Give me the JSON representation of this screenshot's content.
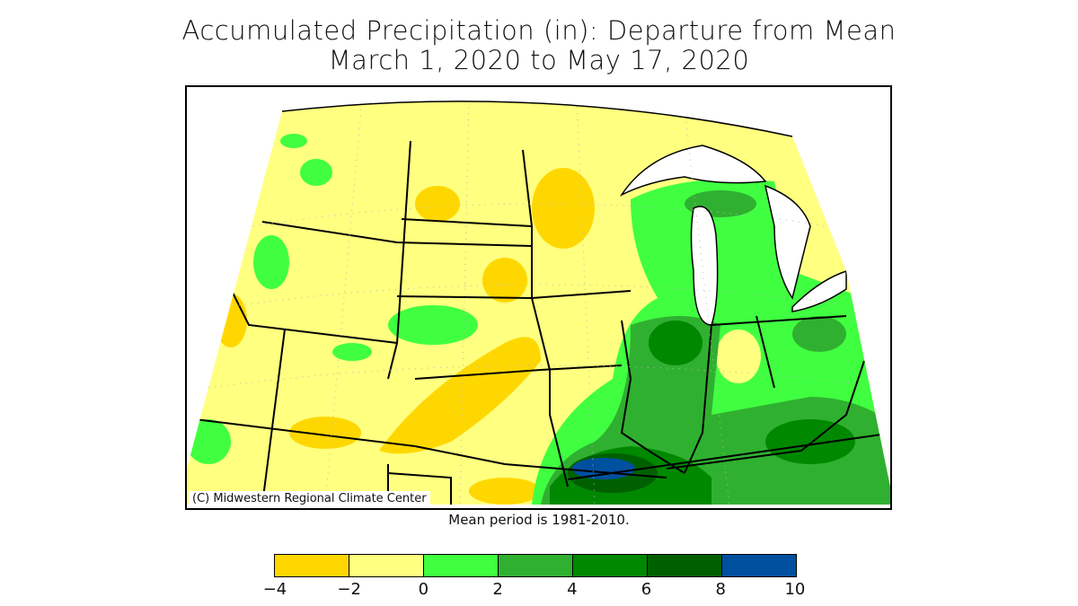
{
  "title": "Accumulated Precipitation (in): Departure from Mean",
  "subtitle": "March 1, 2020 to May 17, 2020",
  "credit": "(C) Midwestern Regional Climate Center",
  "note": "Mean period is 1981-2010.",
  "legend": {
    "unit": "in",
    "ticks": [
      "-4",
      "-2",
      "0",
      "2",
      "4",
      "6",
      "8",
      "10"
    ],
    "bins": [
      {
        "range": [
          -4,
          -2
        ],
        "color": "#FFD700"
      },
      {
        "range": [
          -2,
          0
        ],
        "color": "#FFFF80"
      },
      {
        "range": [
          0,
          2
        ],
        "color": "#40FF40"
      },
      {
        "range": [
          2,
          4
        ],
        "color": "#30B030"
      },
      {
        "range": [
          4,
          6
        ],
        "color": "#008800"
      },
      {
        "range": [
          6,
          8
        ],
        "color": "#006000"
      },
      {
        "range": [
          8,
          10
        ],
        "color": "#0050A0"
      }
    ]
  },
  "water_color": "#FFFFFF"
}
